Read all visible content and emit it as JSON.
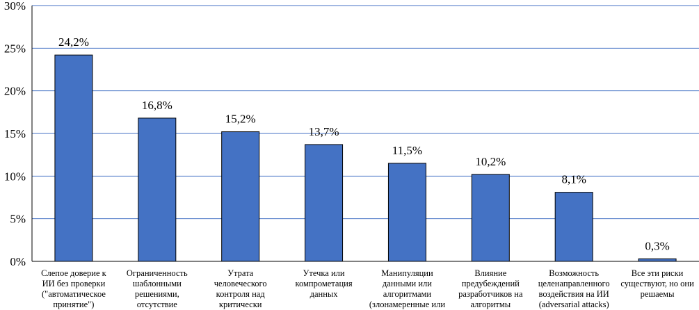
{
  "chart_data": {
    "type": "bar",
    "title": "",
    "xlabel": "",
    "ylabel": "",
    "ylim": [
      0,
      30
    ],
    "yticks": [
      "0%",
      "5%",
      "10%",
      "15%",
      "20%",
      "25%",
      "30%"
    ],
    "grid": true,
    "bar_color": "#4472C4",
    "categories": [
      [
        "Слепое доверие к",
        "ИИ без проверки",
        "(\"автоматическое",
        "принятие\")"
      ],
      [
        "Ограниченность",
        "шаблонными",
        "решениями,",
        "отсутствие"
      ],
      [
        "Утрата",
        "человеческого",
        "контроля над",
        "критически"
      ],
      [
        "Утечка или",
        "компрометация",
        "данных"
      ],
      [
        "Манипуляции",
        "данными или",
        "алгоритмами",
        "(злонамеренные или"
      ],
      [
        "Влияние",
        "предубеждений",
        "разработчиков на",
        "алгоритмы"
      ],
      [
        "Возможность",
        "целенаправленного",
        "воздействия на ИИ",
        "(adversarial attacks)"
      ],
      [
        "Все эти риски",
        "существуют, но они",
        "решаемы"
      ]
    ],
    "values": [
      24.2,
      16.8,
      15.2,
      13.7,
      11.5,
      10.2,
      8.1,
      0.3
    ],
    "data_labels": [
      "24,2%",
      "16,8%",
      "15,2%",
      "13,7%",
      "11,5%",
      "10,2%",
      "8,1%",
      "0,3%"
    ]
  }
}
